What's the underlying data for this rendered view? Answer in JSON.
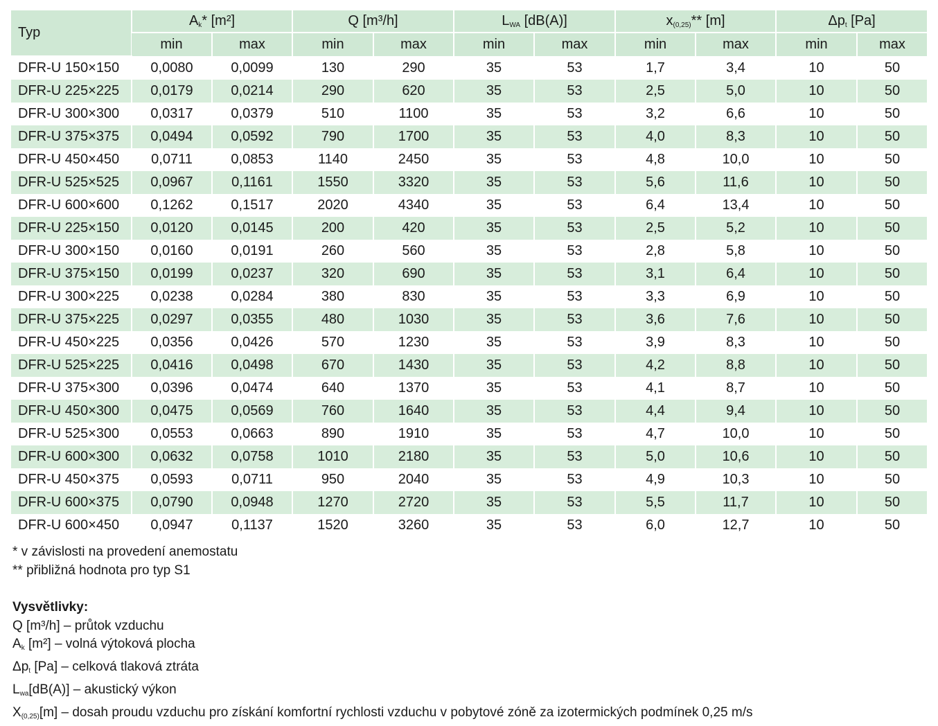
{
  "table": {
    "header": {
      "type": "Typ",
      "groups": [
        [
          {
            "t": "A"
          },
          {
            "sub": "k"
          },
          {
            "t": "* [m²]"
          }
        ],
        [
          {
            "t": "Q [m³/h]"
          }
        ],
        [
          {
            "t": "L"
          },
          {
            "sub": "WA"
          },
          {
            "t": " [dB(A)]"
          }
        ],
        [
          {
            "t": "x"
          },
          {
            "sub": "(0,25)"
          },
          {
            "t": "** [m]"
          }
        ],
        [
          {
            "t": "Δp"
          },
          {
            "sub": "t"
          },
          {
            "t": " [Pa]"
          }
        ]
      ],
      "subheader": [
        "min",
        "max",
        "min",
        "max",
        "min",
        "max",
        "min",
        "max",
        "min",
        "max"
      ]
    },
    "rows": [
      [
        "DFR-U 150×150",
        "0,0080",
        "0,0099",
        "130",
        "290",
        "35",
        "53",
        "1,7",
        "3,4",
        "10",
        "50"
      ],
      [
        "DFR-U 225×225",
        "0,0179",
        "0,0214",
        "290",
        "620",
        "35",
        "53",
        "2,5",
        "5,0",
        "10",
        "50"
      ],
      [
        "DFR-U 300×300",
        "0,0317",
        "0,0379",
        "510",
        "1100",
        "35",
        "53",
        "3,2",
        "6,6",
        "10",
        "50"
      ],
      [
        "DFR-U 375×375",
        "0,0494",
        "0,0592",
        "790",
        "1700",
        "35",
        "53",
        "4,0",
        "8,3",
        "10",
        "50"
      ],
      [
        "DFR-U 450×450",
        "0,0711",
        "0,0853",
        "1140",
        "2450",
        "35",
        "53",
        "4,8",
        "10,0",
        "10",
        "50"
      ],
      [
        "DFR-U 525×525",
        "0,0967",
        "0,1161",
        "1550",
        "3320",
        "35",
        "53",
        "5,6",
        "11,6",
        "10",
        "50"
      ],
      [
        "DFR-U 600×600",
        "0,1262",
        "0,1517",
        "2020",
        "4340",
        "35",
        "53",
        "6,4",
        "13,4",
        "10",
        "50"
      ],
      [
        "DFR-U 225×150",
        "0,0120",
        "0,0145",
        "200",
        "420",
        "35",
        "53",
        "2,5",
        "5,2",
        "10",
        "50"
      ],
      [
        "DFR-U 300×150",
        "0,0160",
        "0,0191",
        "260",
        "560",
        "35",
        "53",
        "2,8",
        "5,8",
        "10",
        "50"
      ],
      [
        "DFR-U 375×150",
        "0,0199",
        "0,0237",
        "320",
        "690",
        "35",
        "53",
        "3,1",
        "6,4",
        "10",
        "50"
      ],
      [
        "DFR-U 300×225",
        "0,0238",
        "0,0284",
        "380",
        "830",
        "35",
        "53",
        "3,3",
        "6,9",
        "10",
        "50"
      ],
      [
        "DFR-U 375×225",
        "0,0297",
        "0,0355",
        "480",
        "1030",
        "35",
        "53",
        "3,6",
        "7,6",
        "10",
        "50"
      ],
      [
        "DFR-U 450×225",
        "0,0356",
        "0,0426",
        "570",
        "1230",
        "35",
        "53",
        "3,9",
        "8,3",
        "10",
        "50"
      ],
      [
        "DFR-U 525×225",
        "0,0416",
        "0,0498",
        "670",
        "1430",
        "35",
        "53",
        "4,2",
        "8,8",
        "10",
        "50"
      ],
      [
        "DFR-U 375×300",
        "0,0396",
        "0,0474",
        "640",
        "1370",
        "35",
        "53",
        "4,1",
        "8,7",
        "10",
        "50"
      ],
      [
        "DFR-U 450×300",
        "0,0475",
        "0,0569",
        "760",
        "1640",
        "35",
        "53",
        "4,4",
        "9,4",
        "10",
        "50"
      ],
      [
        "DFR-U 525×300",
        "0,0553",
        "0,0663",
        "890",
        "1910",
        "35",
        "53",
        "4,7",
        "10,0",
        "10",
        "50"
      ],
      [
        "DFR-U 600×300",
        "0,0632",
        "0,0758",
        "1010",
        "2180",
        "35",
        "53",
        "5,0",
        "10,6",
        "10",
        "50"
      ],
      [
        "DFR-U 450×375",
        "0,0593",
        "0,0711",
        "950",
        "2040",
        "35",
        "53",
        "4,9",
        "10,3",
        "10",
        "50"
      ],
      [
        "DFR-U 600×375",
        "0,0790",
        "0,0948",
        "1270",
        "2720",
        "35",
        "53",
        "5,5",
        "11,7",
        "10",
        "50"
      ],
      [
        "DFR-U 600×450",
        "0,0947",
        "0,1137",
        "1520",
        "3260",
        "35",
        "53",
        "6,0",
        "12,7",
        "10",
        "50"
      ]
    ]
  },
  "notes": [
    "* v závislosti na provedení anemostatu",
    "** přibližná hodnota pro typ S1"
  ],
  "legend": {
    "title": "Vysvětlivky:",
    "items": [
      [
        {
          "t": "Q [m³/h] – průtok vzduchu"
        }
      ],
      [
        {
          "t": "A"
        },
        {
          "sub": "k"
        },
        {
          "t": " [m²] – volná výtoková plocha"
        }
      ],
      [
        {
          "t": "Δp"
        },
        {
          "sub": "t"
        },
        {
          "t": " [Pa] – celková tlaková ztráta"
        }
      ],
      [
        {
          "t": "L"
        },
        {
          "sub": "wa"
        },
        {
          "t": "[dB(A)] – akustický výkon"
        }
      ],
      [
        {
          "t": "X"
        },
        {
          "sub": "(0,25)"
        },
        {
          "t": "[m] – dosah proudu vzduchu pro získání komfortní rychlosti vzduchu v pobytové zóně za izotermických podmínek 0,25 m/s"
        }
      ]
    ]
  }
}
